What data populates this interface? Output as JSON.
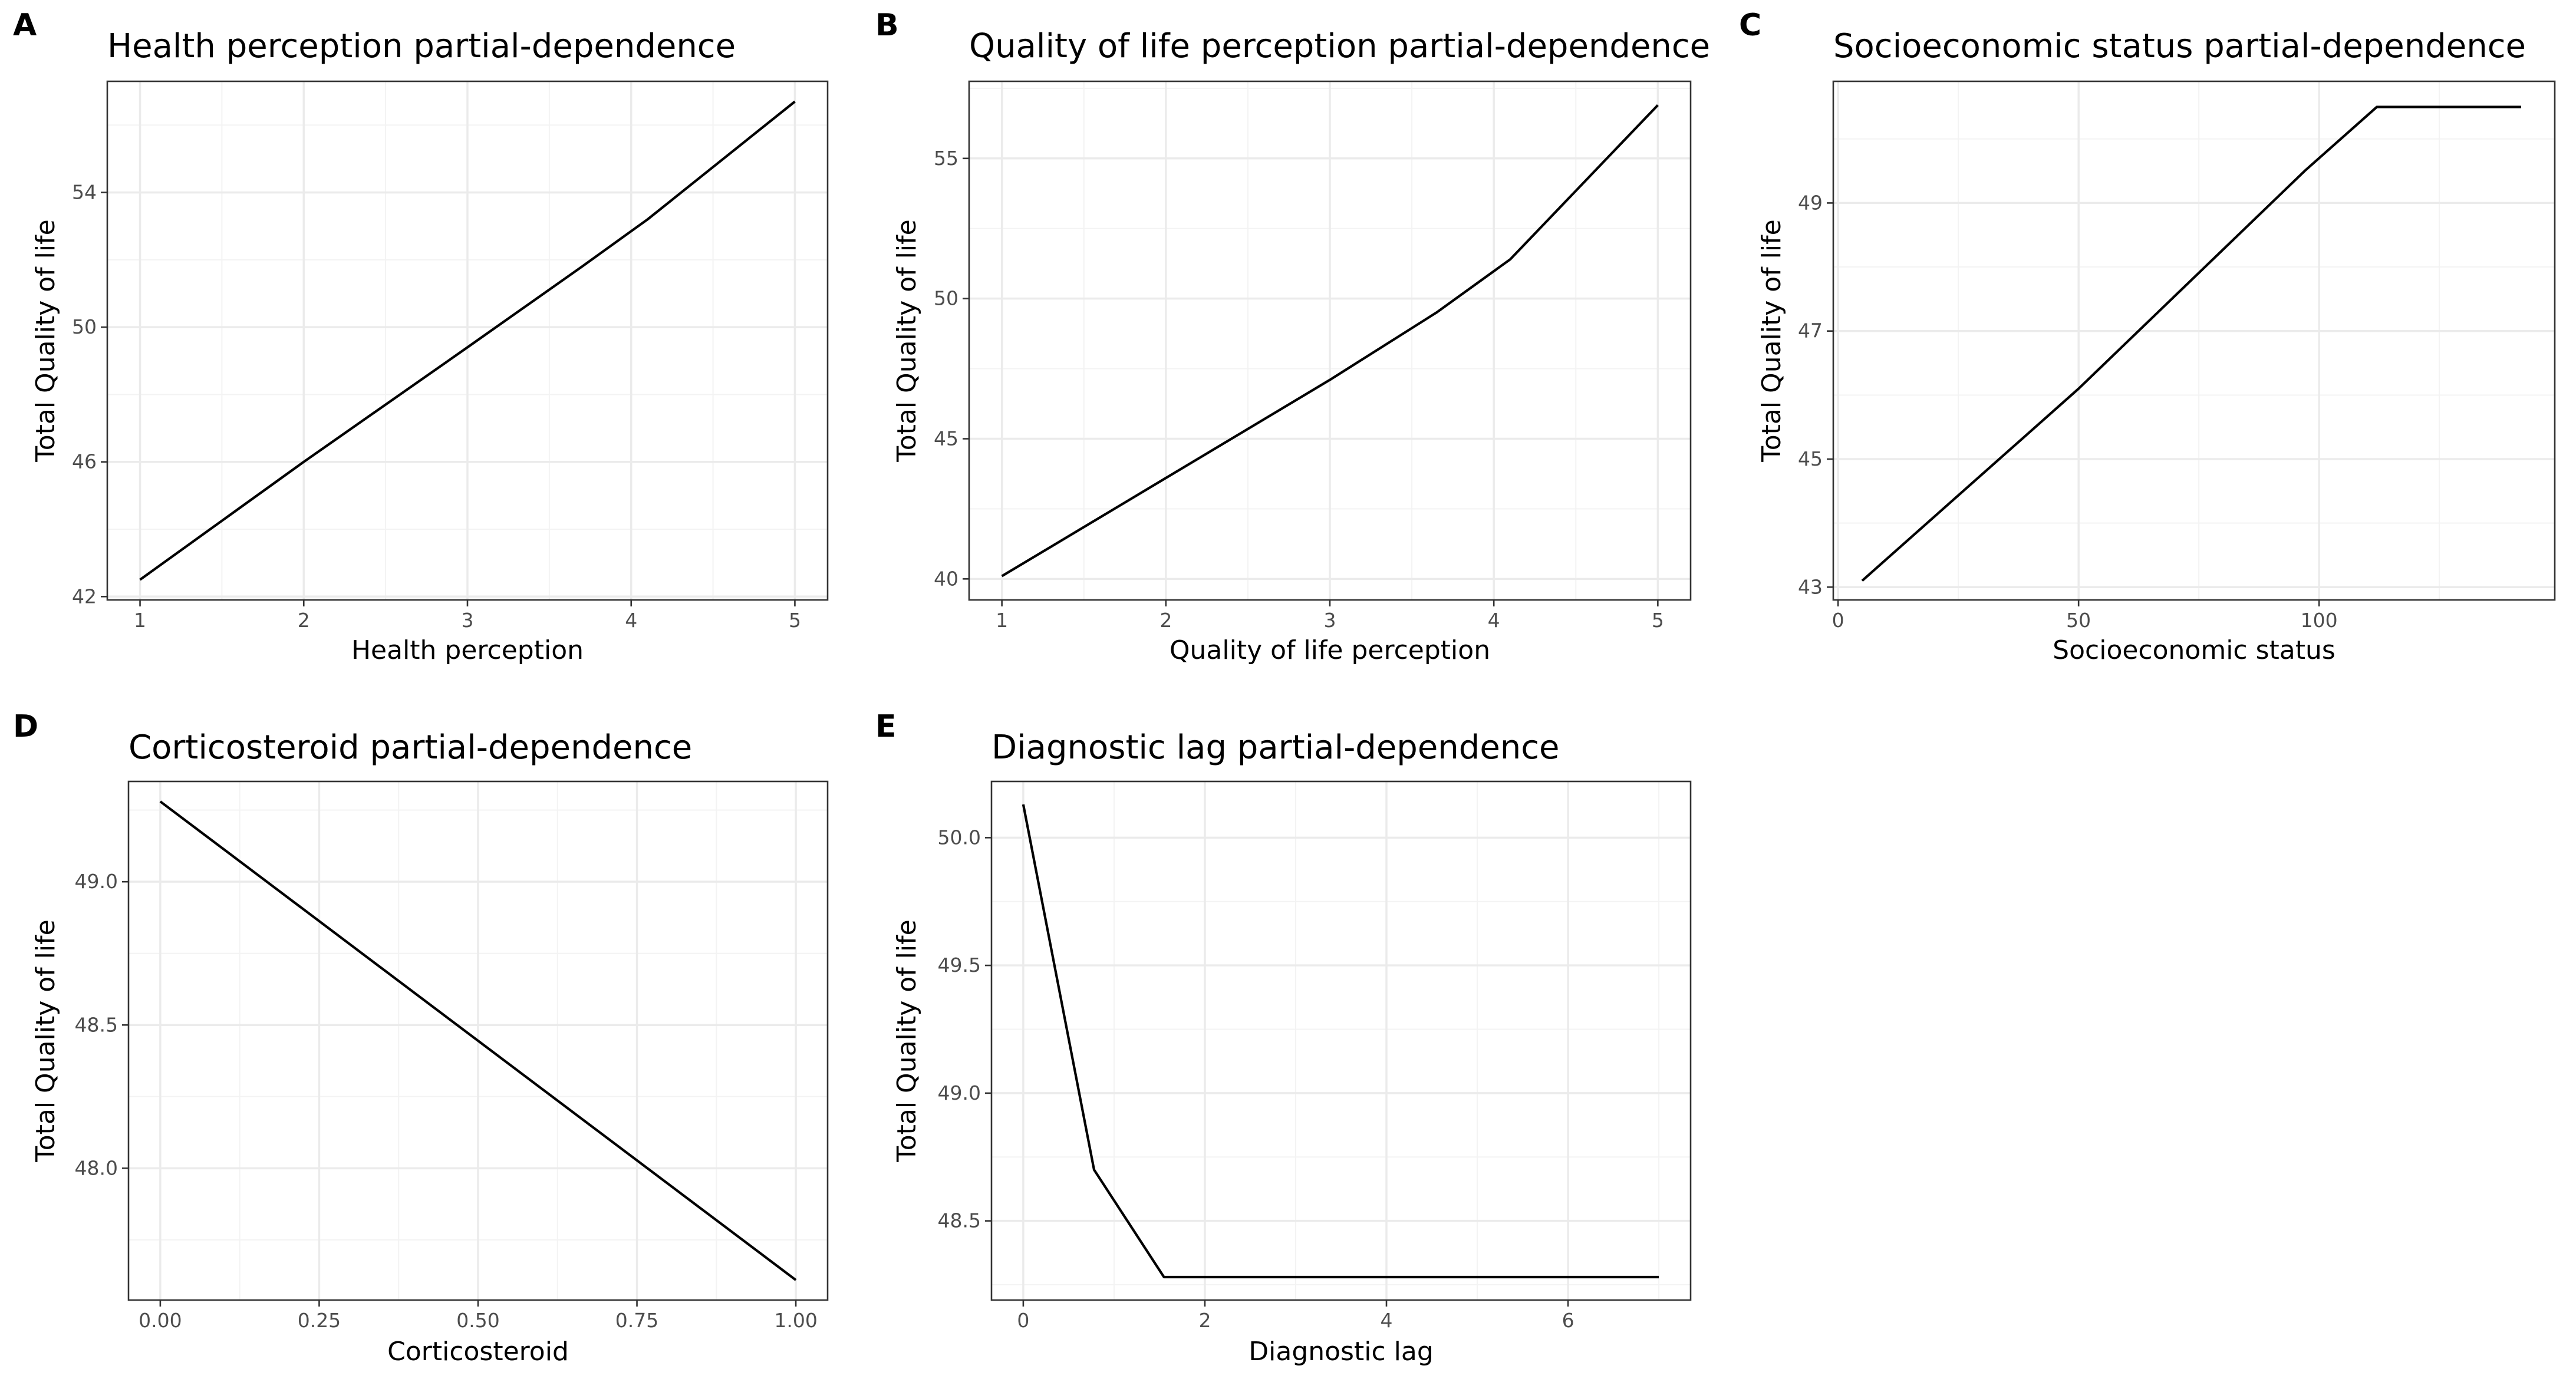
{
  "chart_data": [
    {
      "id": "A",
      "panel_label": "A",
      "type": "line",
      "title": "Health perception partial-dependence",
      "xlabel": "Health perception",
      "ylabel": "Total Quality of life",
      "xlim": [
        0.8,
        5.2
      ],
      "ylim": [
        41.9,
        57.3
      ],
      "xticks": [
        1,
        2,
        3,
        4,
        5
      ],
      "yticks": [
        42,
        46,
        50,
        54
      ],
      "x": [
        1,
        2,
        3,
        3.7,
        4.1,
        5
      ],
      "y": [
        42.5,
        46.0,
        49.4,
        51.8,
        53.2,
        56.7
      ],
      "grid": true,
      "line_color": "#000000"
    },
    {
      "id": "B",
      "panel_label": "B",
      "type": "line",
      "title": "Quality of life perception partial-dependence",
      "xlabel": "Quality of life perception",
      "ylabel": "Total Quality of life",
      "xlim": [
        0.8,
        5.2
      ],
      "ylim": [
        39.25,
        57.75
      ],
      "xticks": [
        1,
        2,
        3,
        4,
        5
      ],
      "yticks": [
        40,
        45,
        50,
        55
      ],
      "x": [
        1,
        2,
        3,
        3.65,
        4.1,
        5
      ],
      "y": [
        40.1,
        43.6,
        47.1,
        49.5,
        51.4,
        56.9
      ],
      "grid": true,
      "line_color": "#000000"
    },
    {
      "id": "C",
      "panel_label": "C",
      "type": "line",
      "title": "Socioeconomic status partial-dependence",
      "xlabel": "Socioeconomic status",
      "ylabel": "Total Quality of life",
      "xlim": [
        -1,
        149
      ],
      "ylim": [
        42.8,
        50.9
      ],
      "xticks": [
        0,
        50,
        100
      ],
      "yticks": [
        43,
        45,
        47,
        49
      ],
      "x": [
        5,
        50,
        97,
        112,
        142
      ],
      "y": [
        43.1,
        46.1,
        49.5,
        50.5,
        50.5
      ],
      "grid": true,
      "line_color": "#000000"
    },
    {
      "id": "D",
      "panel_label": "D",
      "type": "line",
      "title": "Corticosteroid partial-dependence",
      "xlabel": "Corticosteroid",
      "ylabel": "Total Quality of life",
      "xlim": [
        -0.05,
        1.05
      ],
      "ylim": [
        47.54,
        49.35
      ],
      "xticks": [
        0.0,
        0.25,
        0.5,
        0.75,
        1.0
      ],
      "xtick_labels": [
        "0.00",
        "0.25",
        "0.50",
        "0.75",
        "1.00"
      ],
      "yticks": [
        48.0,
        48.5,
        49.0
      ],
      "ytick_labels": [
        "48.0",
        "48.5",
        "49.0"
      ],
      "x": [
        0,
        1
      ],
      "y": [
        49.28,
        47.61
      ],
      "grid": true,
      "line_color": "#000000"
    },
    {
      "id": "E",
      "panel_label": "E",
      "type": "line",
      "title": "Diagnostic lag partial-dependence",
      "xlabel": "Diagnostic lag",
      "ylabel": "Total Quality of life",
      "xlim": [
        -0.35,
        7.35
      ],
      "ylim": [
        48.19,
        50.22
      ],
      "xticks": [
        0,
        2,
        4,
        6
      ],
      "yticks": [
        48.5,
        49.0,
        49.5,
        50.0
      ],
      "ytick_labels": [
        "48.5",
        "49.0",
        "49.5",
        "50.0"
      ],
      "x": [
        0,
        0.78,
        1.55,
        7
      ],
      "y": [
        50.13,
        48.7,
        48.28,
        48.28
      ],
      "grid": true,
      "line_color": "#000000"
    }
  ]
}
